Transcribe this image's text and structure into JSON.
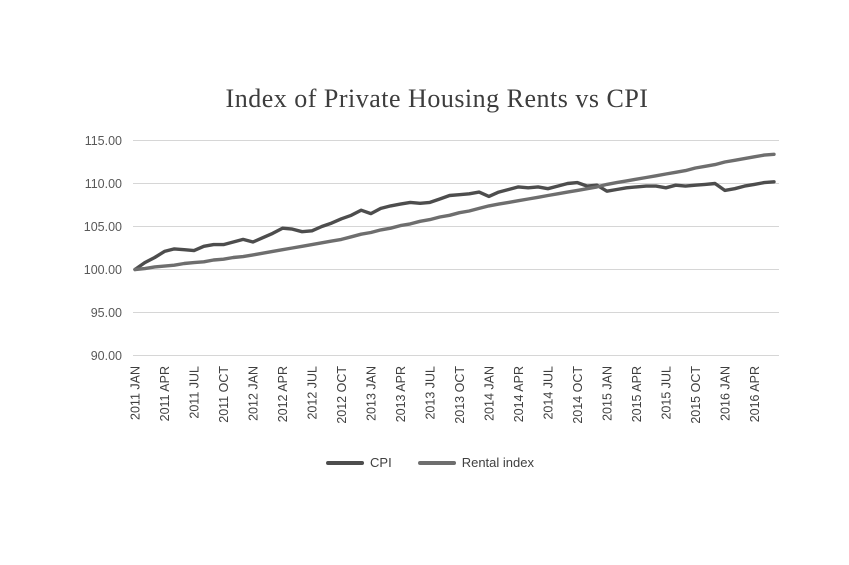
{
  "title": "Index of Private Housing Rents vs CPI",
  "chart_data": {
    "type": "line",
    "title": "Index of Private Housing Rents vs CPI",
    "x_unit": "month",
    "x_start": "2011 JAN",
    "x_end": "2016 JUN",
    "x_tick_every_months": 3,
    "x_tick_labels": [
      "2011 JAN",
      "2011 APR",
      "2011 JUL",
      "2011 OCT",
      "2012 JAN",
      "2012 APR",
      "2012 JUL",
      "2012 OCT",
      "2013 JAN",
      "2013 APR",
      "2013 JUL",
      "2013 OCT",
      "2014 JAN",
      "2014 APR",
      "2014 JUL",
      "2014 OCT",
      "2015 JAN",
      "2015 APR",
      "2015 JUL",
      "2015 OCT",
      "2016 JAN",
      "2016 APR"
    ],
    "ylim": [
      90,
      115
    ],
    "y_ticks": [
      90,
      95,
      100,
      105,
      110,
      115
    ],
    "y_tick_labels": [
      "90.00",
      "95.00",
      "100.00",
      "105.00",
      "110.00",
      "115.00"
    ],
    "grid": "horizontal",
    "legend_position": "bottom",
    "series": [
      {
        "name": "CPI",
        "color": "#4d4d4d",
        "values": [
          100.0,
          100.8,
          101.4,
          102.1,
          102.4,
          102.3,
          102.2,
          102.7,
          102.9,
          102.9,
          103.2,
          103.5,
          103.2,
          103.7,
          104.2,
          104.8,
          104.7,
          104.4,
          104.5,
          105.0,
          105.4,
          105.9,
          106.3,
          106.9,
          106.5,
          107.1,
          107.4,
          107.6,
          107.8,
          107.7,
          107.8,
          108.2,
          108.6,
          108.7,
          108.8,
          109.0,
          108.5,
          109.0,
          109.3,
          109.6,
          109.5,
          109.6,
          109.4,
          109.7,
          110.0,
          110.1,
          109.7,
          109.8,
          109.1,
          109.3,
          109.5,
          109.6,
          109.7,
          109.7,
          109.5,
          109.8,
          109.7,
          109.8,
          109.9,
          110.0,
          109.2,
          109.4,
          109.7,
          109.9,
          110.1,
          110.2
        ]
      },
      {
        "name": "Rental index",
        "color": "#6e6e6e",
        "values": [
          100.0,
          100.1,
          100.3,
          100.4,
          100.5,
          100.7,
          100.8,
          100.9,
          101.1,
          101.2,
          101.4,
          101.5,
          101.7,
          101.9,
          102.1,
          102.3,
          102.5,
          102.7,
          102.9,
          103.1,
          103.3,
          103.5,
          103.8,
          104.1,
          104.3,
          104.6,
          104.8,
          105.1,
          105.3,
          105.6,
          105.8,
          106.1,
          106.3,
          106.6,
          106.8,
          107.1,
          107.4,
          107.6,
          107.8,
          108.0,
          108.2,
          108.4,
          108.6,
          108.8,
          109.0,
          109.2,
          109.4,
          109.6,
          109.9,
          110.1,
          110.3,
          110.5,
          110.7,
          110.9,
          111.1,
          111.3,
          111.5,
          111.8,
          112.0,
          112.2,
          112.5,
          112.7,
          112.9,
          113.1,
          113.3,
          113.4
        ]
      }
    ]
  },
  "style": {
    "gridline_color": "#d6d6d6",
    "y_label_color": "#595959",
    "x_label_color": "#3f3f3f",
    "line_width": 3.4
  }
}
